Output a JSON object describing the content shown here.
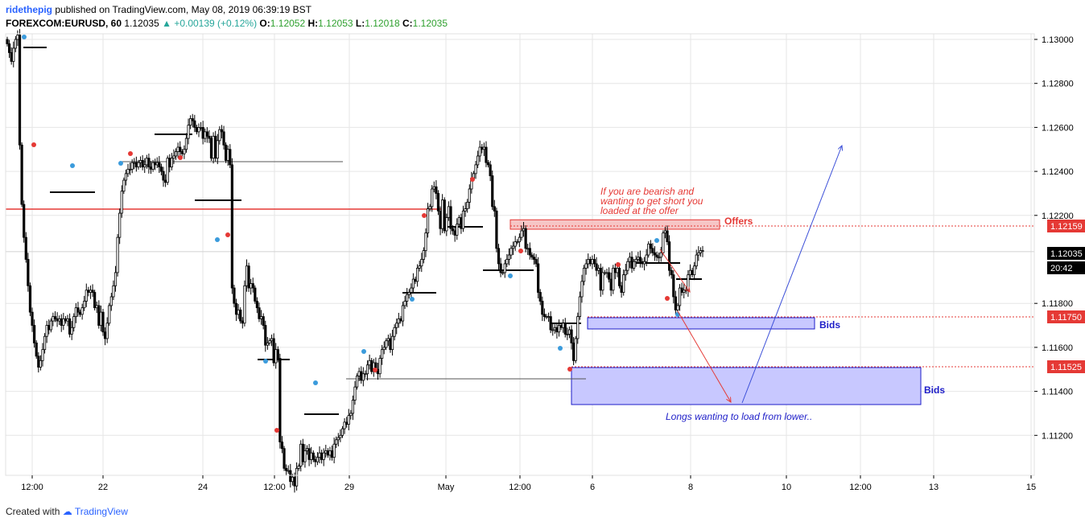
{
  "header": {
    "user": "ridethepig",
    "published": "published on TradingView.com, May 08, 2019 06:39:19 BST",
    "symbol": "FOREXCOM:EURUSD, 60",
    "last": "1.12035",
    "change": "▲ +0.00139 (+0.12%)",
    "o_label": "O:",
    "o_value": "1.12052",
    "h_label": "H:",
    "h_value": "1.12053",
    "l_label": "L:",
    "l_value": "1.12018",
    "c_label": "C:",
    "c_value": "1.12035"
  },
  "footer": {
    "created_with": "Created with",
    "brand": "TradingView"
  },
  "colors": {
    "up": "#000000",
    "grid": "#e6e6e6",
    "red": "#e53935",
    "blue": "#1e1ec8",
    "zone_red": "#f4b6b6",
    "zone_blue": "#c8c8ff"
  },
  "chart_data": {
    "type": "candlestick",
    "y_ticks": [
      "1.13000",
      "1.12800",
      "1.12600",
      "1.12400",
      "1.12200",
      "1.11800",
      "1.11600",
      "1.11400",
      "1.11200"
    ],
    "x_ticks": [
      "12:00",
      "22",
      "24",
      "12:00",
      "29",
      "May",
      "12:00",
      "6",
      "8",
      "10",
      "12:00",
      "13",
      "15"
    ],
    "price_labels": {
      "level_1": "1.12159",
      "current": "1.12035",
      "countdown": "20:42",
      "level_2": "1.11750",
      "level_3": "1.11525"
    },
    "annotations": {
      "bearish_note": [
        "If you are bearish and",
        "wanting to get short you",
        "loaded at the offer"
      ],
      "offers_label": "Offers",
      "bids_label_upper": "Bids",
      "bids_label_lower": "Bids",
      "longs_note": "Longs wanting to load from lower.."
    },
    "closes": [
      1.1298,
      1.1294,
      1.129,
      1.1296,
      1.13,
      1.1302,
      1.1252,
      1.1225,
      1.121,
      1.12,
      1.1188,
      1.1176,
      1.117,
      1.1162,
      1.1156,
      1.1151,
      1.1154,
      1.1159,
      1.1165,
      1.117,
      1.1168,
      1.1172,
      1.1174,
      1.1173,
      1.1172,
      1.1173,
      1.117,
      1.1173,
      1.1172,
      1.1173,
      1.1166,
      1.1169,
      1.1174,
      1.1178,
      1.1176,
      1.1175,
      1.1178,
      1.1181,
      1.1186,
      1.1185,
      1.1186,
      1.1185,
      1.1178,
      1.1179,
      1.117,
      1.1176,
      1.1167,
      1.1164,
      1.1171,
      1.1179,
      1.1183,
      1.1188,
      1.1194,
      1.121,
      1.1221,
      1.1231,
      1.1236,
      1.1239,
      1.1241,
      1.1241,
      1.1244,
      1.1244,
      1.1242,
      1.1244,
      1.1245,
      1.1242,
      1.1243,
      1.1246,
      1.1242,
      1.1241,
      1.1244,
      1.1243,
      1.1244,
      1.1242,
      1.124,
      1.1236,
      1.1235,
      1.1246,
      1.1242,
      1.1246,
      1.1247,
      1.1249,
      1.1251,
      1.1249,
      1.1248,
      1.125,
      1.1255,
      1.1261,
      1.1264,
      1.1263,
      1.126,
      1.1258,
      1.126,
      1.126,
      1.1255,
      1.1258,
      1.1256,
      1.1255,
      1.1246,
      1.1256,
      1.1246,
      1.1254,
      1.1259,
      1.1258,
      1.1252,
      1.1245,
      1.125,
      1.1243,
      1.1187,
      1.118,
      1.1175,
      1.1177,
      1.1172,
      1.1171,
      1.1188,
      1.1197,
      1.1187,
      1.1189,
      1.1187,
      1.1181,
      1.1178,
      1.1173,
      1.1174,
      1.117,
      1.1161,
      1.1162,
      1.1163,
      1.1164,
      1.1153,
      1.1159,
      1.1155,
      1.1117,
      1.1114,
      1.1105,
      1.1104,
      1.1104,
      1.1099,
      1.1101,
      1.1097,
      1.1105,
      1.1106,
      1.1116,
      1.1108,
      1.1113,
      1.1114,
      1.1109,
      1.1112,
      1.1109,
      1.1108,
      1.111,
      1.1112,
      1.1109,
      1.1112,
      1.1113,
      1.1111,
      1.1113,
      1.111,
      1.1116,
      1.1118,
      1.1119,
      1.112,
      1.1123,
      1.1126,
      1.1125,
      1.1129,
      1.113,
      1.1136,
      1.1142,
      1.1147,
      1.1149,
      1.1145,
      1.1148,
      1.1148,
      1.1152,
      1.1154,
      1.1149,
      1.1153,
      1.115,
      1.1148,
      1.1155,
      1.1159,
      1.116,
      1.1163,
      1.1164,
      1.1159,
      1.1165,
      1.1169,
      1.1171,
      1.1173,
      1.1172,
      1.1179,
      1.1181,
      1.1184,
      1.1185,
      1.1187,
      1.1191,
      1.119,
      1.1196,
      1.1197,
      1.12,
      1.1204,
      1.1212,
      1.1223,
      1.1224,
      1.1232,
      1.1233,
      1.123,
      1.1222,
      1.1214,
      1.1227,
      1.1213,
      1.1219,
      1.1224,
      1.1214,
      1.1213,
      1.1211,
      1.1216,
      1.1219,
      1.1214,
      1.1222,
      1.1223,
      1.1226,
      1.1232,
      1.1237,
      1.1239,
      1.1243,
      1.1247,
      1.1251,
      1.125,
      1.1251,
      1.1244,
      1.1243,
      1.1238,
      1.1224,
      1.1222,
      1.1205,
      1.1198,
      1.1194,
      1.1194,
      1.1198,
      1.12,
      1.1202,
      1.1205,
      1.1206,
      1.1208,
      1.1208,
      1.121,
      1.1213,
      1.1214,
      1.1205,
      1.1205,
      1.1202,
      1.1201,
      1.12,
      1.1198,
      1.1185,
      1.1181,
      1.1175,
      1.1174,
      1.1174,
      1.1174,
      1.1168,
      1.1168,
      1.1169,
      1.1167,
      1.117,
      1.1169,
      1.1171,
      1.1166,
      1.1166,
      1.1168,
      1.1162,
      1.1154,
      1.1164,
      1.1174,
      1.1183,
      1.119,
      1.1196,
      1.1198,
      1.12,
      1.1198,
      1.12,
      1.1198,
      1.1195,
      1.1196,
      1.1186,
      1.1194,
      1.1194,
      1.1194,
      1.1191,
      1.1186,
      1.1196,
      1.1194,
      1.1196,
      1.1188,
      1.1185,
      1.1193,
      1.1195,
      1.1199,
      1.1201,
      1.1196,
      1.1199,
      1.12,
      1.1201,
      1.1199,
      1.1198,
      1.1199,
      1.1202,
      1.1207,
      1.1205,
      1.1203,
      1.1202,
      1.1201,
      1.1201,
      1.1203,
      1.1212,
      1.1213,
      1.1208,
      1.1195,
      1.1193,
      1.1183,
      1.1177,
      1.1179,
      1.1187,
      1.1185,
      1.1186,
      1.1186,
      1.1193,
      1.1195,
      1.1193,
      1.1197,
      1.1202,
      1.1203,
      1.1204,
      1.1204
    ]
  }
}
